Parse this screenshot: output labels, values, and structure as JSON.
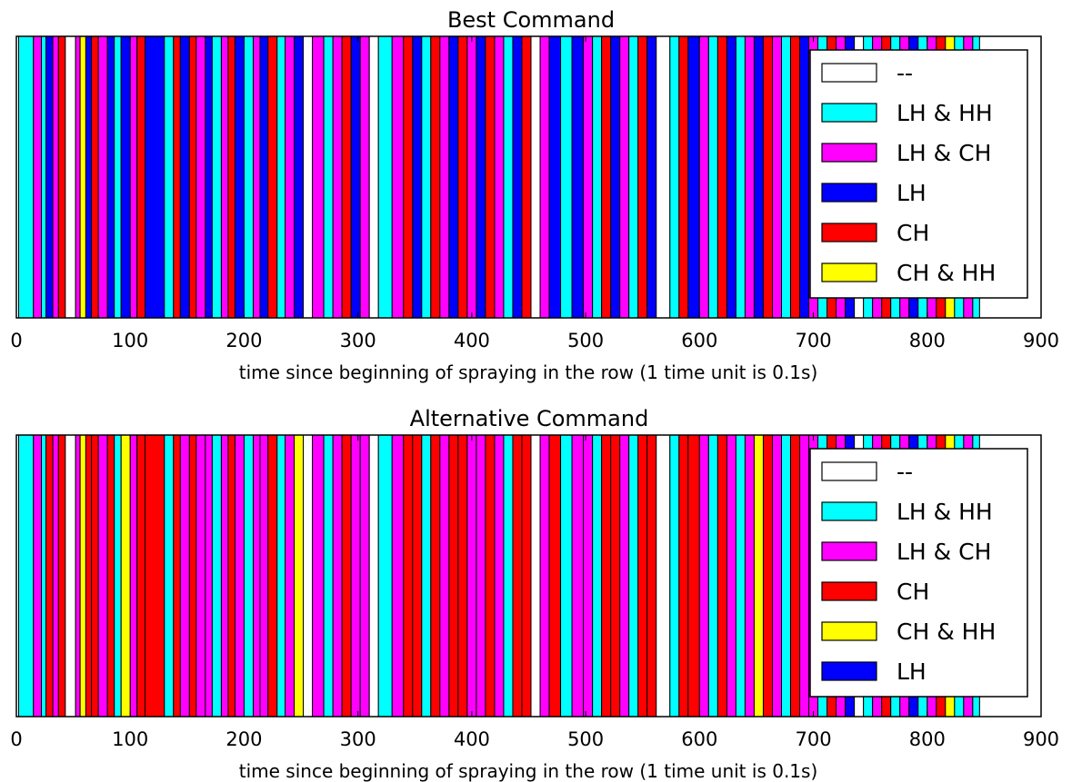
{
  "chart_data": [
    {
      "type": "bar",
      "title": "Best Command",
      "xlabel": "time since beginning of spraying in the row (1 time unit is 0.1s)",
      "ylabel": "",
      "xlim": [
        0,
        900
      ],
      "xticks": [
        "0",
        "100",
        "200",
        "300",
        "400",
        "500",
        "600",
        "700",
        "800",
        "900"
      ],
      "legend": {
        "placement": "right",
        "entries": [
          {
            "label": "--",
            "color": "#ffffff"
          },
          {
            "label": "LH & HH",
            "color": "#00ffff"
          },
          {
            "label": "LH & CH",
            "color": "#ff00ff"
          },
          {
            "label": "LH",
            "color": "#0000ff"
          },
          {
            "label": "CH",
            "color": "#ff0000"
          },
          {
            "label": "CH & HH",
            "color": "#ffff00"
          }
        ]
      },
      "segments": [
        [
          0,
          2,
          "-"
        ],
        [
          2,
          15,
          "C"
        ],
        [
          15,
          22,
          "M"
        ],
        [
          22,
          26,
          "C"
        ],
        [
          26,
          32,
          "B"
        ],
        [
          32,
          37,
          "M"
        ],
        [
          37,
          43,
          "R"
        ],
        [
          43,
          52,
          "-"
        ],
        [
          52,
          56,
          "M"
        ],
        [
          56,
          61,
          "Y"
        ],
        [
          61,
          66,
          "B"
        ],
        [
          66,
          72,
          "R"
        ],
        [
          72,
          80,
          "M"
        ],
        [
          80,
          86,
          "B"
        ],
        [
          86,
          92,
          "C"
        ],
        [
          92,
          100,
          "B"
        ],
        [
          100,
          106,
          "M"
        ],
        [
          106,
          113,
          "R"
        ],
        [
          113,
          130,
          "B"
        ],
        [
          130,
          138,
          "C"
        ],
        [
          138,
          144,
          "R"
        ],
        [
          144,
          152,
          "B"
        ],
        [
          152,
          158,
          "R"
        ],
        [
          158,
          166,
          "M"
        ],
        [
          166,
          172,
          "B"
        ],
        [
          172,
          180,
          "C"
        ],
        [
          180,
          186,
          "M"
        ],
        [
          186,
          192,
          "R"
        ],
        [
          192,
          200,
          "B"
        ],
        [
          200,
          208,
          "C"
        ],
        [
          208,
          214,
          "M"
        ],
        [
          214,
          221,
          "B"
        ],
        [
          221,
          229,
          "R"
        ],
        [
          229,
          236,
          "C"
        ],
        [
          236,
          244,
          "M"
        ],
        [
          244,
          252,
          "B"
        ],
        [
          252,
          260,
          "-"
        ],
        [
          260,
          270,
          "M"
        ],
        [
          270,
          278,
          "C"
        ],
        [
          278,
          286,
          "M"
        ],
        [
          286,
          294,
          "R"
        ],
        [
          294,
          302,
          "B"
        ],
        [
          302,
          310,
          "M"
        ],
        [
          310,
          318,
          "-"
        ],
        [
          318,
          330,
          "C"
        ],
        [
          330,
          340,
          "M"
        ],
        [
          340,
          348,
          "R"
        ],
        [
          348,
          356,
          "B"
        ],
        [
          356,
          364,
          "C"
        ],
        [
          364,
          372,
          "R"
        ],
        [
          372,
          380,
          "M"
        ],
        [
          380,
          388,
          "B"
        ],
        [
          388,
          396,
          "R"
        ],
        [
          396,
          404,
          "M"
        ],
        [
          404,
          412,
          "B"
        ],
        [
          412,
          420,
          "R"
        ],
        [
          420,
          428,
          "M"
        ],
        [
          428,
          436,
          "C"
        ],
        [
          436,
          444,
          "B"
        ],
        [
          444,
          452,
          "R"
        ],
        [
          452,
          460,
          "-"
        ],
        [
          460,
          468,
          "M"
        ],
        [
          468,
          478,
          "B"
        ],
        [
          478,
          488,
          "C"
        ],
        [
          488,
          498,
          "B"
        ],
        [
          498,
          506,
          "M"
        ],
        [
          506,
          514,
          "C"
        ],
        [
          514,
          522,
          "R"
        ],
        [
          522,
          530,
          "B"
        ],
        [
          530,
          538,
          "M"
        ],
        [
          538,
          546,
          "C"
        ],
        [
          546,
          554,
          "R"
        ],
        [
          554,
          562,
          "B"
        ],
        [
          562,
          574,
          "-"
        ],
        [
          574,
          582,
          "C"
        ],
        [
          582,
          590,
          "R"
        ],
        [
          590,
          600,
          "B"
        ],
        [
          600,
          608,
          "M"
        ],
        [
          608,
          616,
          "C"
        ],
        [
          616,
          624,
          "R"
        ],
        [
          624,
          632,
          "B"
        ],
        [
          632,
          640,
          "C"
        ],
        [
          640,
          648,
          "M"
        ],
        [
          648,
          656,
          "B"
        ],
        [
          656,
          664,
          "R"
        ],
        [
          664,
          672,
          "M"
        ],
        [
          672,
          680,
          "C"
        ],
        [
          680,
          688,
          "R"
        ],
        [
          688,
          696,
          "B"
        ],
        [
          696,
          704,
          "M"
        ],
        [
          704,
          712,
          "C"
        ],
        [
          712,
          720,
          "R"
        ],
        [
          720,
          728,
          "M"
        ],
        [
          728,
          736,
          "B"
        ],
        [
          736,
          744,
          "-"
        ],
        [
          744,
          752,
          "C"
        ],
        [
          752,
          760,
          "M"
        ],
        [
          760,
          768,
          "R"
        ],
        [
          768,
          776,
          "C"
        ],
        [
          776,
          784,
          "M"
        ],
        [
          784,
          792,
          "B"
        ],
        [
          792,
          800,
          "C"
        ],
        [
          800,
          808,
          "M"
        ],
        [
          808,
          816,
          "R"
        ],
        [
          816,
          824,
          "Y"
        ],
        [
          824,
          832,
          "C"
        ],
        [
          832,
          840,
          "M"
        ],
        [
          840,
          846,
          "C"
        ],
        [
          846,
          900,
          "-"
        ]
      ]
    },
    {
      "type": "bar",
      "title": "Alternative Command",
      "xlabel": "time since beginning of spraying in the row (1 time unit is 0.1s)",
      "ylabel": "",
      "xlim": [
        0,
        900
      ],
      "xticks": [
        "0",
        "100",
        "200",
        "300",
        "400",
        "500",
        "600",
        "700",
        "800",
        "900"
      ],
      "legend": {
        "placement": "right",
        "entries": [
          {
            "label": "--",
            "color": "#ffffff"
          },
          {
            "label": "LH & HH",
            "color": "#00ffff"
          },
          {
            "label": "LH & CH",
            "color": "#ff00ff"
          },
          {
            "label": "CH",
            "color": "#ff0000"
          },
          {
            "label": "CH & HH",
            "color": "#ffff00"
          },
          {
            "label": "LH",
            "color": "#0000ff"
          }
        ]
      },
      "segments": [
        [
          0,
          2,
          "-"
        ],
        [
          2,
          15,
          "C"
        ],
        [
          15,
          22,
          "M"
        ],
        [
          22,
          26,
          "C"
        ],
        [
          26,
          32,
          "R"
        ],
        [
          32,
          37,
          "M"
        ],
        [
          37,
          43,
          "R"
        ],
        [
          43,
          52,
          "-"
        ],
        [
          52,
          56,
          "M"
        ],
        [
          56,
          61,
          "Y"
        ],
        [
          61,
          66,
          "R"
        ],
        [
          66,
          72,
          "R"
        ],
        [
          72,
          80,
          "M"
        ],
        [
          80,
          86,
          "R"
        ],
        [
          86,
          92,
          "C"
        ],
        [
          92,
          100,
          "Y"
        ],
        [
          100,
          106,
          "M"
        ],
        [
          106,
          113,
          "R"
        ],
        [
          113,
          130,
          "R"
        ],
        [
          130,
          138,
          "C"
        ],
        [
          138,
          144,
          "R"
        ],
        [
          144,
          152,
          "M"
        ],
        [
          152,
          158,
          "R"
        ],
        [
          158,
          166,
          "M"
        ],
        [
          166,
          172,
          "M"
        ],
        [
          172,
          180,
          "C"
        ],
        [
          180,
          186,
          "M"
        ],
        [
          186,
          192,
          "R"
        ],
        [
          192,
          200,
          "M"
        ],
        [
          200,
          208,
          "C"
        ],
        [
          208,
          214,
          "M"
        ],
        [
          214,
          221,
          "M"
        ],
        [
          221,
          229,
          "R"
        ],
        [
          229,
          236,
          "C"
        ],
        [
          236,
          244,
          "M"
        ],
        [
          244,
          252,
          "Y"
        ],
        [
          252,
          260,
          "-"
        ],
        [
          260,
          270,
          "M"
        ],
        [
          270,
          278,
          "C"
        ],
        [
          278,
          286,
          "M"
        ],
        [
          286,
          294,
          "R"
        ],
        [
          294,
          302,
          "M"
        ],
        [
          302,
          310,
          "M"
        ],
        [
          310,
          318,
          "-"
        ],
        [
          318,
          330,
          "C"
        ],
        [
          330,
          340,
          "M"
        ],
        [
          340,
          348,
          "R"
        ],
        [
          348,
          356,
          "R"
        ],
        [
          356,
          364,
          "C"
        ],
        [
          364,
          372,
          "R"
        ],
        [
          372,
          380,
          "M"
        ],
        [
          380,
          388,
          "R"
        ],
        [
          388,
          396,
          "R"
        ],
        [
          396,
          404,
          "M"
        ],
        [
          404,
          412,
          "M"
        ],
        [
          412,
          420,
          "R"
        ],
        [
          420,
          428,
          "M"
        ],
        [
          428,
          436,
          "C"
        ],
        [
          436,
          444,
          "R"
        ],
        [
          444,
          452,
          "R"
        ],
        [
          452,
          460,
          "-"
        ],
        [
          460,
          468,
          "M"
        ],
        [
          468,
          478,
          "R"
        ],
        [
          478,
          488,
          "C"
        ],
        [
          488,
          498,
          "M"
        ],
        [
          498,
          506,
          "M"
        ],
        [
          506,
          514,
          "C"
        ],
        [
          514,
          522,
          "R"
        ],
        [
          522,
          530,
          "R"
        ],
        [
          530,
          538,
          "M"
        ],
        [
          538,
          546,
          "C"
        ],
        [
          546,
          554,
          "R"
        ],
        [
          554,
          562,
          "R"
        ],
        [
          562,
          574,
          "-"
        ],
        [
          574,
          582,
          "C"
        ],
        [
          582,
          590,
          "R"
        ],
        [
          590,
          600,
          "R"
        ],
        [
          600,
          608,
          "M"
        ],
        [
          608,
          616,
          "C"
        ],
        [
          616,
          624,
          "R"
        ],
        [
          624,
          632,
          "M"
        ],
        [
          632,
          640,
          "C"
        ],
        [
          640,
          648,
          "M"
        ],
        [
          648,
          656,
          "Y"
        ],
        [
          656,
          664,
          "R"
        ],
        [
          664,
          672,
          "M"
        ],
        [
          672,
          680,
          "C"
        ],
        [
          680,
          688,
          "R"
        ],
        [
          688,
          696,
          "M"
        ],
        [
          696,
          704,
          "M"
        ],
        [
          704,
          712,
          "C"
        ],
        [
          712,
          720,
          "R"
        ],
        [
          720,
          728,
          "M"
        ],
        [
          728,
          736,
          "B"
        ],
        [
          736,
          744,
          "-"
        ],
        [
          744,
          752,
          "C"
        ],
        [
          752,
          760,
          "M"
        ],
        [
          760,
          768,
          "R"
        ],
        [
          768,
          776,
          "C"
        ],
        [
          776,
          784,
          "M"
        ],
        [
          784,
          792,
          "B"
        ],
        [
          792,
          800,
          "C"
        ],
        [
          800,
          808,
          "M"
        ],
        [
          808,
          816,
          "R"
        ],
        [
          816,
          824,
          "Y"
        ],
        [
          824,
          832,
          "C"
        ],
        [
          832,
          840,
          "M"
        ],
        [
          840,
          846,
          "C"
        ],
        [
          846,
          900,
          "-"
        ]
      ]
    }
  ]
}
